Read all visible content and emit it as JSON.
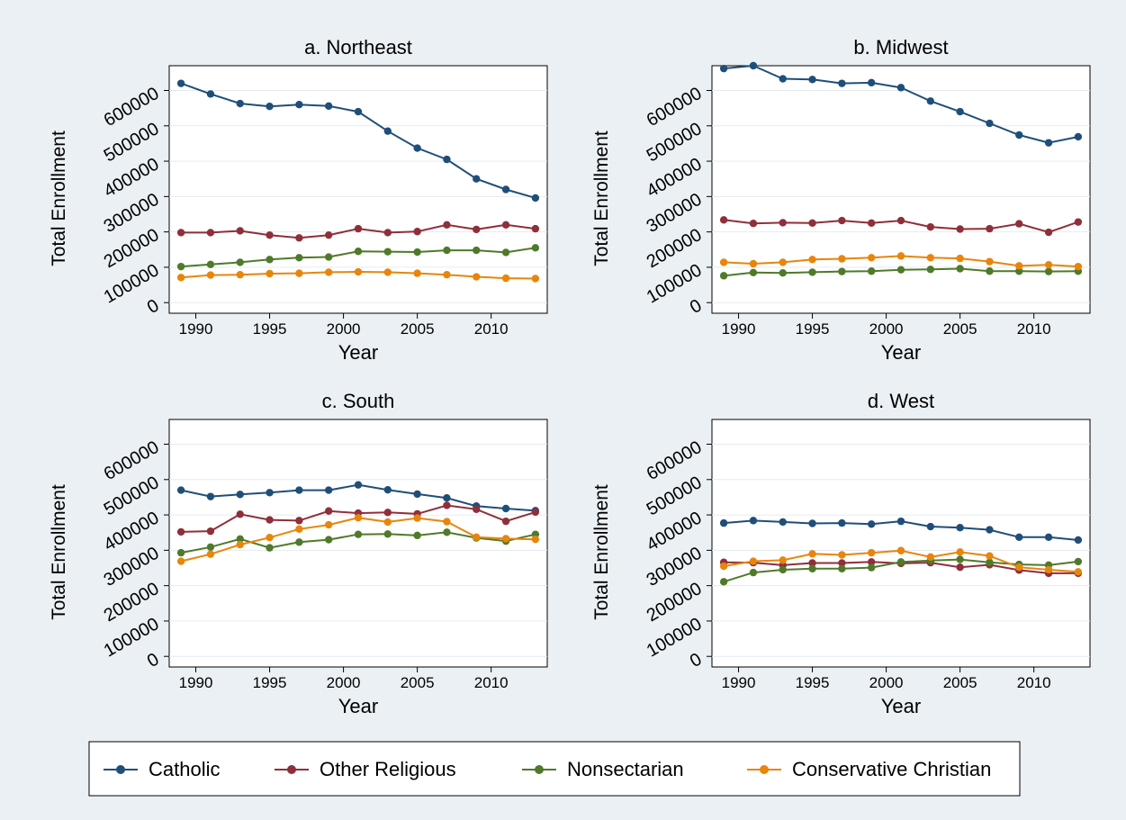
{
  "colors": {
    "background": "#eaf0f4",
    "plot_bg": "#ffffff",
    "grid": "#e6ebef",
    "series": {
      "Catholic": "#1f4e79",
      "Other Religious": "#8f2f3a",
      "Nonsectarian": "#4f7a2a",
      "Conservative Christian": "#e8850c"
    }
  },
  "legend": {
    "position": "bottom",
    "items": [
      "Catholic",
      "Other Religious",
      "Nonsectarian",
      "Conservative Christian"
    ]
  },
  "chart_data": [
    {
      "type": "line",
      "title": "a. Northeast",
      "xlabel": "Year",
      "ylabel": "Total Enrollment",
      "xticks": [
        "1990",
        "1995",
        "2000",
        "2005",
        "2010"
      ],
      "yticks": [
        "0",
        "100000",
        "200000",
        "300000",
        "400000",
        "500000",
        "600000"
      ],
      "xlim": [
        1988.2,
        2013.8
      ],
      "ylim": [
        -30000,
        670000
      ],
      "grid": true,
      "x": [
        1989,
        1991,
        1993,
        1995,
        1997,
        1999,
        2001,
        2003,
        2005,
        2007,
        2009,
        2011,
        2013
      ],
      "series": [
        {
          "name": "Catholic",
          "values": [
            620000,
            590000,
            563000,
            555000,
            560000,
            556000,
            540000,
            485000,
            437000,
            405000,
            350000,
            320000,
            296000
          ]
        },
        {
          "name": "Other Religious",
          "values": [
            198000,
            198000,
            203000,
            191000,
            183000,
            191000,
            209000,
            198000,
            201000,
            220000,
            207000,
            220000,
            209000
          ]
        },
        {
          "name": "Nonsectarian",
          "values": [
            102000,
            108000,
            114000,
            122000,
            127000,
            129000,
            145000,
            144000,
            143000,
            148000,
            148000,
            142000,
            155000
          ]
        },
        {
          "name": "Conservative Christian",
          "values": [
            71000,
            78000,
            79000,
            82000,
            83000,
            86000,
            87000,
            86000,
            83000,
            79000,
            73000,
            69000,
            68000
          ]
        }
      ]
    },
    {
      "type": "line",
      "title": "b. Midwest",
      "xlabel": "Year",
      "ylabel": "Total Enrollment",
      "xticks": [
        "1990",
        "1995",
        "2000",
        "2005",
        "2010"
      ],
      "yticks": [
        "0",
        "100000",
        "200000",
        "300000",
        "400000",
        "500000",
        "600000"
      ],
      "xlim": [
        1988.2,
        2013.8
      ],
      "ylim": [
        -30000,
        670000
      ],
      "grid": true,
      "x": [
        1989,
        1991,
        1993,
        1995,
        1997,
        1999,
        2001,
        2003,
        2005,
        2007,
        2009,
        2011,
        2013
      ],
      "series": [
        {
          "name": "Catholic",
          "values": [
            662000,
            670000,
            633000,
            631000,
            620000,
            622000,
            608000,
            570000,
            540000,
            507000,
            474000,
            452000,
            469000
          ]
        },
        {
          "name": "Other Religious",
          "values": [
            234000,
            224000,
            226000,
            225000,
            232000,
            225000,
            232000,
            214000,
            208000,
            209000,
            223000,
            199000,
            228000
          ]
        },
        {
          "name": "Nonsectarian",
          "values": [
            76000,
            85000,
            84000,
            86000,
            88000,
            89000,
            93000,
            94000,
            96000,
            89000,
            89000,
            88000,
            89000
          ]
        },
        {
          "name": "Conservative Christian",
          "values": [
            114000,
            110000,
            114000,
            122000,
            124000,
            127000,
            132000,
            127000,
            125000,
            116000,
            104000,
            107000,
            102000
          ]
        }
      ]
    },
    {
      "type": "line",
      "title": "c. South",
      "xlabel": "Year",
      "ylabel": "Total Enrollment",
      "xticks": [
        "1990",
        "1995",
        "2000",
        "2005",
        "2010"
      ],
      "yticks": [
        "0",
        "100000",
        "200000",
        "300000",
        "400000",
        "500000",
        "600000"
      ],
      "xlim": [
        1988.2,
        2013.8
      ],
      "ylim": [
        -30000,
        670000
      ],
      "grid": true,
      "x": [
        1989,
        1991,
        1993,
        1995,
        1997,
        1999,
        2001,
        2003,
        2005,
        2007,
        2009,
        2011,
        2013
      ],
      "series": [
        {
          "name": "Catholic",
          "values": [
            470000,
            452000,
            458000,
            463000,
            470000,
            470000,
            485000,
            471000,
            459000,
            448000,
            425000,
            418000,
            412000
          ]
        },
        {
          "name": "Other Religious",
          "values": [
            352000,
            354000,
            402000,
            386000,
            384000,
            411000,
            405000,
            407000,
            403000,
            427000,
            416000,
            382000,
            408000
          ]
        },
        {
          "name": "Nonsectarian",
          "values": [
            293000,
            309000,
            332000,
            307000,
            323000,
            330000,
            345000,
            346000,
            342000,
            351000,
            335000,
            326000,
            345000
          ]
        },
        {
          "name": "Conservative Christian",
          "values": [
            269000,
            289000,
            316000,
            336000,
            360000,
            372000,
            392000,
            380000,
            391000,
            381000,
            337000,
            333000,
            331000
          ]
        }
      ]
    },
    {
      "type": "line",
      "title": "d. West",
      "xlabel": "Year",
      "ylabel": "Total Enrollment",
      "xticks": [
        "1990",
        "1995",
        "2000",
        "2005",
        "2010"
      ],
      "yticks": [
        "0",
        "100000",
        "200000",
        "300000",
        "400000",
        "500000",
        "600000"
      ],
      "xlim": [
        1988.2,
        2013.8
      ],
      "ylim": [
        -30000,
        670000
      ],
      "grid": true,
      "x": [
        1989,
        1991,
        1993,
        1995,
        1997,
        1999,
        2001,
        2003,
        2005,
        2007,
        2009,
        2011,
        2013
      ],
      "series": [
        {
          "name": "Catholic",
          "values": [
            377000,
            384000,
            380000,
            376000,
            377000,
            374000,
            382000,
            367000,
            364000,
            358000,
            337000,
            337000,
            329000
          ]
        },
        {
          "name": "Other Religious",
          "values": [
            266000,
            265000,
            258000,
            264000,
            264000,
            267000,
            263000,
            265000,
            252000,
            259000,
            244000,
            235000,
            235000
          ]
        },
        {
          "name": "Nonsectarian",
          "values": [
            211000,
            237000,
            245000,
            248000,
            248000,
            251000,
            267000,
            271000,
            274000,
            266000,
            260000,
            258000,
            268000
          ]
        },
        {
          "name": "Conservative Christian",
          "values": [
            255000,
            269000,
            272000,
            290000,
            287000,
            293000,
            299000,
            281000,
            295000,
            284000,
            252000,
            245000,
            239000
          ]
        }
      ]
    }
  ]
}
